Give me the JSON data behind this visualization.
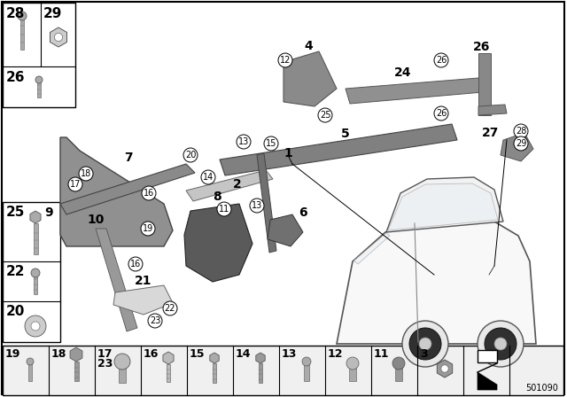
{
  "bg": "#ffffff",
  "part_number": "501090",
  "gray1": "#888888",
  "gray2": "#aaaaaa",
  "gray3": "#cccccc",
  "gray_dark": "#555555",
  "gray_light": "#e0e0e0",
  "black": "#000000",
  "white": "#ffffff"
}
